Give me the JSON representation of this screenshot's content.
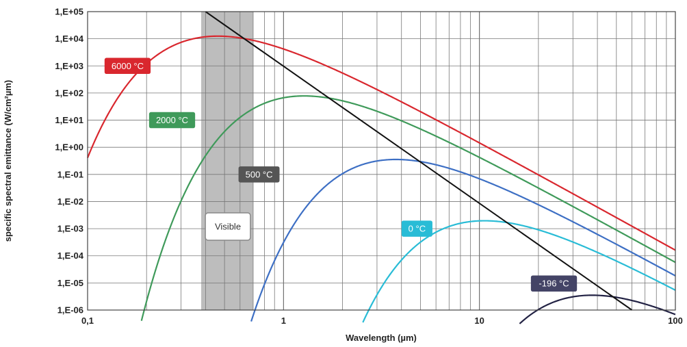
{
  "chart_data": {
    "type": "line",
    "title": "",
    "xlabel": "Wavelength (µm)",
    "ylabel": "specific spectral emittance  (W/cm²µm)",
    "x_scale": "log",
    "y_scale": "log",
    "xlim": [
      0.1,
      100
    ],
    "ylim": [
      1e-06,
      100000.0
    ],
    "grid": true,
    "x_tick_labels": [
      "0,1",
      "1",
      "10",
      "100"
    ],
    "y_tick_labels": [
      "1,E-06",
      "1,E-05",
      "1,E-04",
      "1,E-03",
      "1,E-02",
      "1,E-01",
      "1,E+00",
      "1,E+01",
      "1,E+02",
      "1,E+03",
      "1,E+04",
      "1,E+05"
    ],
    "visible_band": {
      "label": "Visible",
      "x_range": [
        0.38,
        0.7
      ],
      "color": "#bdbdbd"
    },
    "series": [
      {
        "name": "6000 °C",
        "color": "#d9272e",
        "temp_c": 6000
      },
      {
        "name": "2000 °C",
        "color": "#3f9a5a",
        "temp_c": 2000
      },
      {
        "name": "500 °C",
        "color": "#3d6fc4",
        "temp_c": 500
      },
      {
        "name": "0 °C",
        "color": "#29bcd6",
        "temp_c": 0
      },
      {
        "name": "-196 °C",
        "color": "#222244",
        "temp_c": -196
      }
    ],
    "wien_line": {
      "color": "#111111",
      "points": [
        [
          0.4,
          100000
        ],
        [
          60,
          1e-06
        ]
      ]
    },
    "annotations": [
      {
        "text": "6000 °C",
        "x": 0.16,
        "y": 1000,
        "border": "#d9272e",
        "fill": "#d9272e"
      },
      {
        "text": "2000 °C",
        "x": 0.27,
        "y": 10,
        "border": "#3f9a5a",
        "fill": "#3f9a5a"
      },
      {
        "text": "500 °C",
        "x": 0.75,
        "y": 0.1,
        "border": "#555555",
        "fill": "#555555"
      },
      {
        "text": "0 °C",
        "x": 4.8,
        "y": 0.001,
        "border": "#29bcd6",
        "fill": "#29bcd6"
      },
      {
        "text": "-196 °C",
        "x": 24,
        "y": 9.5e-06,
        "border": "#444466",
        "fill": "#444466"
      },
      {
        "text": "Visible",
        "x": 0.52,
        "y": 0.0012,
        "border": "#888888",
        "fill": "#ffffff"
      }
    ]
  }
}
